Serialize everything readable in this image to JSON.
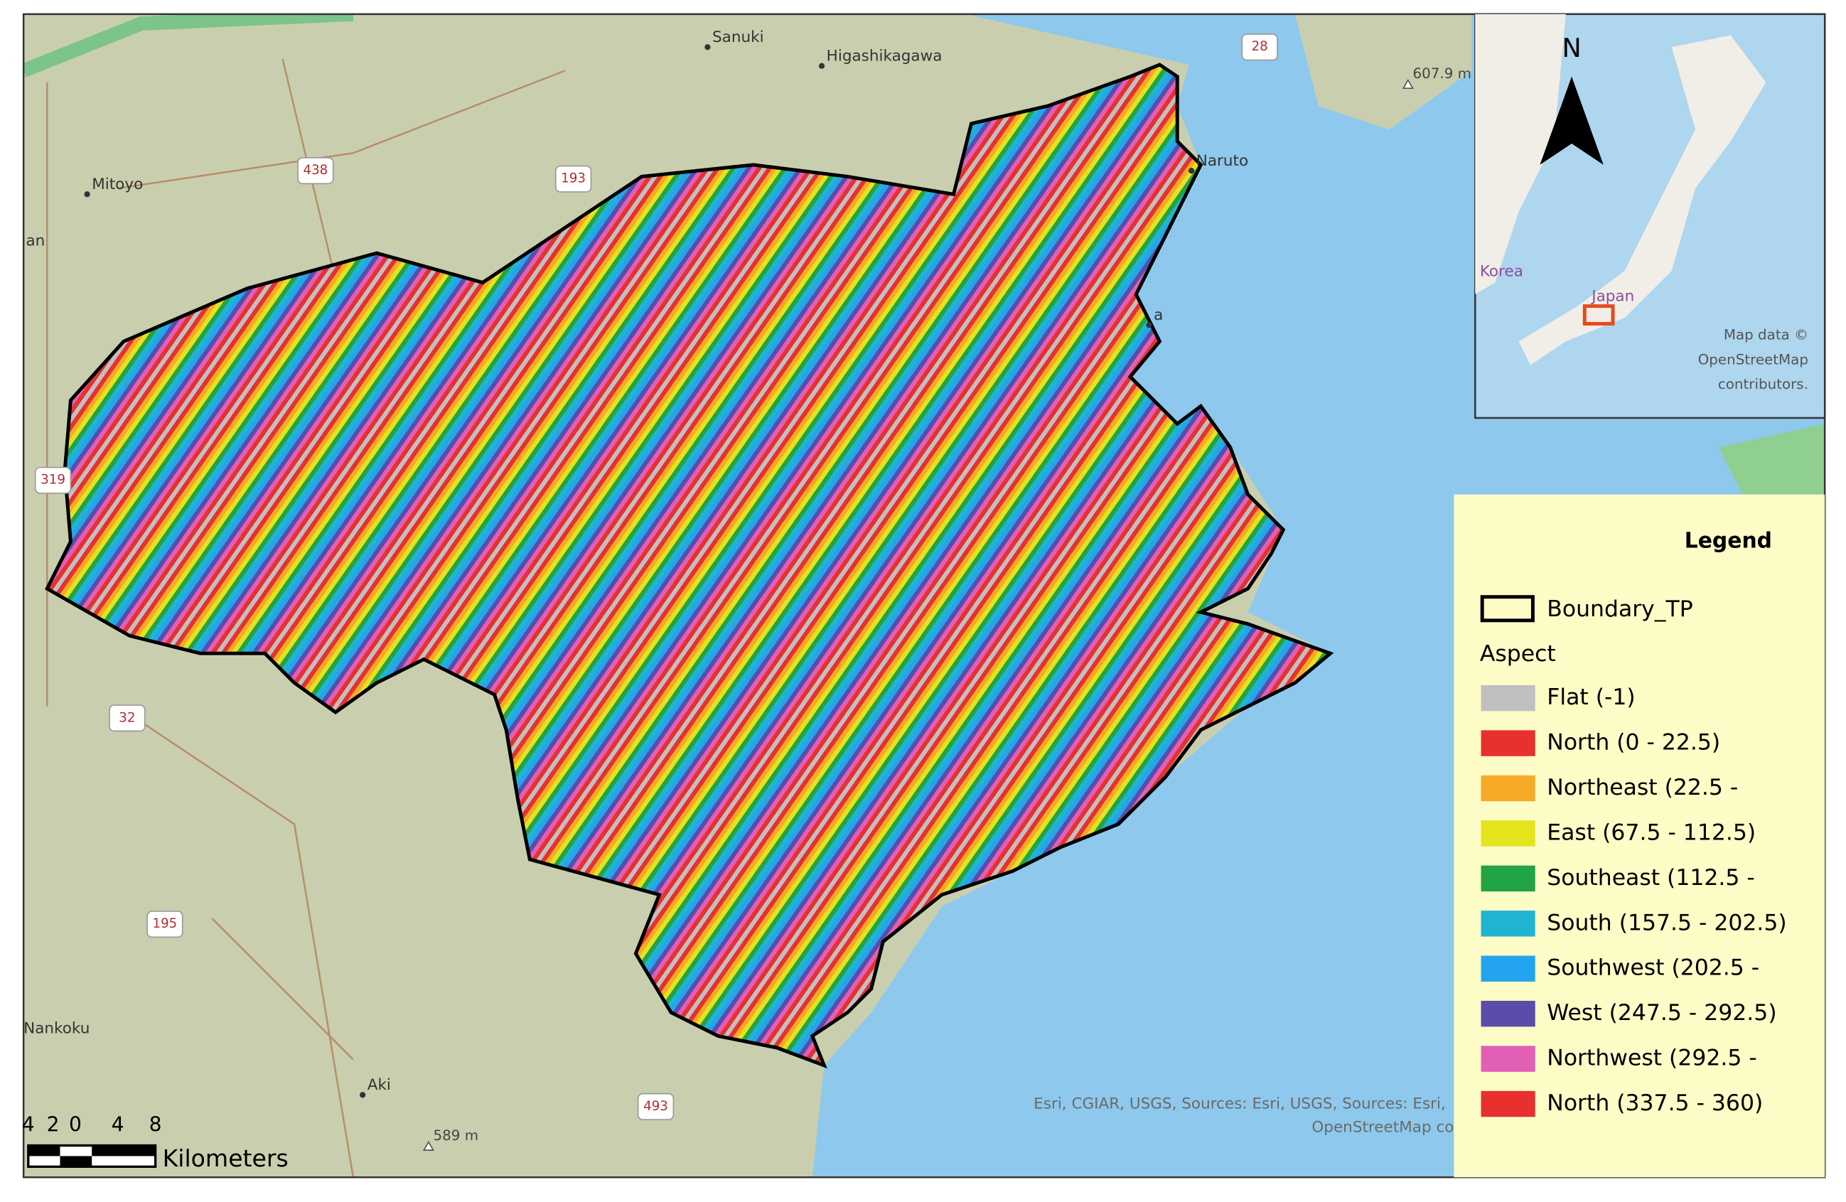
{
  "map": {
    "place_labels": [
      "Sanuki",
      "Higashikagawa",
      "Mitoyo",
      "an",
      "Naruto",
      "a",
      "Nankoku",
      "Aki"
    ],
    "road_shields": [
      "28",
      "438",
      "193",
      "319",
      "32",
      "195",
      "493"
    ],
    "elevation_labels": [
      "607.9 m",
      "589 m"
    ],
    "attribution": [
      "Esri, CGIAR, USGS, Sources: Esri, USGS, Sources: Esri,",
      "OpenStreetMap co"
    ]
  },
  "inset": {
    "north": "N",
    "labels": [
      "Korea",
      "Japan"
    ],
    "attribution": [
      "Map data ©",
      "OpenStreetMap",
      "contributors."
    ]
  },
  "legend": {
    "title": "Legend",
    "boundary": "Boundary_TP",
    "group": "Aspect",
    "items": [
      {
        "label": "Flat (-1)",
        "color": "#c0c0c0"
      },
      {
        "label": "North (0 - 22.5)",
        "color": "#e8302f"
      },
      {
        "label": "Northeast (22.5 -",
        "color": "#f7a928"
      },
      {
        "label": "East (67.5 - 112.5)",
        "color": "#e3e41c"
      },
      {
        "label": "Southeast (112.5 -",
        "color": "#22a344"
      },
      {
        "label": "South (157.5 - 202.5)",
        "color": "#21b4d2"
      },
      {
        "label": "Southwest (202.5 -",
        "color": "#22a4ee"
      },
      {
        "label": "West (247.5 - 292.5)",
        "color": "#5a4ca8"
      },
      {
        "label": "Northwest (292.5 -",
        "color": "#e25fb5"
      },
      {
        "label": "North (337.5 - 360)",
        "color": "#e8302f"
      }
    ]
  },
  "scale_bar": {
    "ticks": [
      "4",
      "2",
      "0",
      "4",
      "8"
    ],
    "unit": "Kilometers"
  }
}
